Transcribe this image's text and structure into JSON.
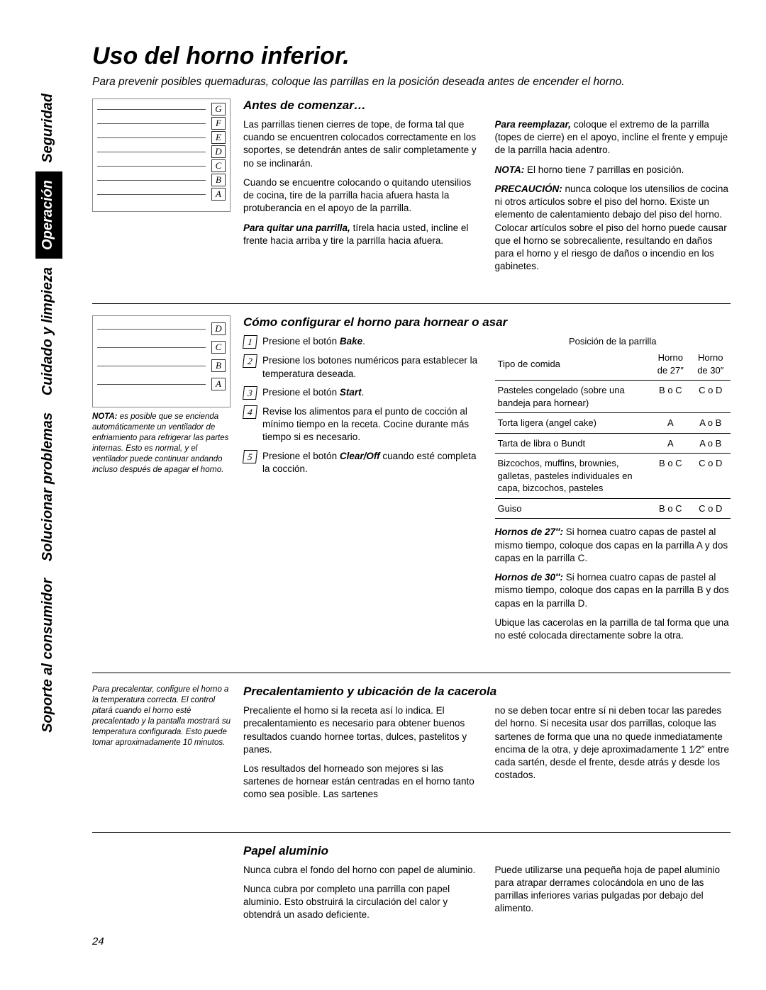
{
  "page_number": "24",
  "tabs": [
    {
      "label": "Seguridad",
      "active": false
    },
    {
      "label": "Operación",
      "active": true
    },
    {
      "label": "Cuidado y limpieza",
      "active": false
    },
    {
      "label": "Solucionar problemas",
      "active": false
    },
    {
      "label": "Soporte al consumidor",
      "active": false
    }
  ],
  "title": "Uso del horno inferior.",
  "subtitle": "Para prevenir posibles quemaduras, coloque las parrillas en la posición deseada antes de encender el horno.",
  "rack_labels_1": [
    "G",
    "F",
    "E",
    "D",
    "C",
    "B",
    "A"
  ],
  "rack_labels_2": [
    "D",
    "C",
    "B",
    "A"
  ],
  "section1": {
    "heading": "Antes de comenzar…",
    "p1": "Las parrillas tienen cierres de tope, de forma tal que cuando se encuentren colocados correctamente en los soportes, se detendrán antes de salir completamente y no se inclinarán.",
    "p2": "Cuando se encuentre colocando o quitando utensilios de cocina, tire de la parrilla hacia afuera hasta la protuberancia en el apoyo de la parrilla.",
    "p3_b": "Para quitar una parrilla,",
    "p3": " tírela hacia usted, incline el frente hacia arriba y tire la parrilla hacia afuera.",
    "p4_b": "Para reemplazar,",
    "p4": " coloque el extremo de la parrilla (topes de cierre) en el apoyo, incline el frente y empuje de la parrilla hacia adentro.",
    "p5_b": "NOTA:",
    "p5": " El horno tiene 7 parrillas en posición.",
    "p6_b": "PRECAUCIÓN:",
    "p6": " nunca coloque los utensilios de cocina ni otros artículos sobre el piso del horno. Existe un elemento de calentamiento debajo del piso del horno. Colocar artículos sobre el piso del horno puede causar que el horno se sobrecaliente, resultando en daños para el horno y el riesgo de daños o incendio en los gabinetes."
  },
  "section2": {
    "heading": "Cómo configurar el horno para hornear o asar",
    "caption_b": "NOTA:",
    "caption": " es posible que se encienda automáticamente un ventilador de enfriamiento para refrigerar las partes internas. Esto es normal, y el ventilador puede continuar andando incluso después de apagar el horno.",
    "steps": [
      {
        "n": "1",
        "pre": "Presione el botón ",
        "b": "Bake",
        "post": "."
      },
      {
        "n": "2",
        "pre": "Presione los botones numéricos para establecer la temperatura deseada.",
        "b": "",
        "post": ""
      },
      {
        "n": "3",
        "pre": "Presione el botón ",
        "b": "Start",
        "post": "."
      },
      {
        "n": "4",
        "pre": "Revise los alimentos para el punto de cocción al mínimo tiempo en la receta. Cocine durante más tiempo si es necesario.",
        "b": "",
        "post": ""
      },
      {
        "n": "5",
        "pre": "Presione el botón ",
        "b": "Clear/Off",
        "post": " cuando esté completa la cocción."
      }
    ],
    "table_over": "Posición de la parrilla",
    "col_food": "Tipo de comida",
    "col_27": "Horno de 27″",
    "col_30": "Horno de 30″",
    "rows": [
      {
        "food": "Pasteles congelado (sobre una bandeja para hornear)",
        "c27": "B o C",
        "c30": "C o D"
      },
      {
        "food": "Torta ligera (angel cake)",
        "c27": "A",
        "c30": "A o B"
      },
      {
        "food": "Tarta de libra o Bundt",
        "c27": "A",
        "c30": "A o B"
      },
      {
        "food": "Bizcochos, muffins, brownies, galletas, pasteles individuales en capa, bizcochos, pasteles",
        "c27": "B o C",
        "c30": "C o D"
      },
      {
        "food": "Guiso",
        "c27": "B o C",
        "c30": "C o D"
      }
    ],
    "note27_b": "Hornos de 27″:",
    "note27": " Si hornea cuatro capas de pastel al mismo tiempo, coloque dos capas en la parrilla A y dos capas en la parrilla C.",
    "note30_b": "Hornos de 30″:",
    "note30": " Si hornea cuatro capas de pastel al mismo tiempo, coloque dos capas en la parrilla B y dos capas en la parrilla D.",
    "note_last": "Ubique las cacerolas en la parrilla de tal forma que una no esté colocada directamente sobre la otra."
  },
  "section3": {
    "caption": "Para precalentar, configure el horno a la temperatura correcta. El control pitará cuando el horno esté precalentado y la pantalla mostrará su temperatura configurada. Esto puede tomar aproximadamente 10 minutos.",
    "heading": "Precalentamiento y ubicación de la cacerola",
    "p1": "Precaliente el horno si la receta así lo indica. El precalentamiento es necesario para obtener buenos resultados cuando hornee tortas, dulces, pastelitos y panes.",
    "p2": "Los resultados del horneado son mejores si las sartenes de hornear están centradas en el horno tanto como sea posible. Las sartenes",
    "p3": "no se deben tocar entre sí ni deben tocar las paredes del horno. Si necesita usar dos parrillas, coloque las sartenes de forma que una no quede inmediatamente encima de la otra, y deje aproximadamente 1 1⁄2″ entre cada sartén, desde el frente, desde atrás y desde los costados."
  },
  "section4": {
    "heading": "Papel aluminio",
    "p1": "Nunca cubra el fondo del horno con papel de aluminio.",
    "p2": "Nunca cubra por completo una parrilla con papel aluminio. Esto obstruirá la circulación del calor y obtendrá un asado deficiente.",
    "p3": "Puede utilizarse una pequeña hoja de papel aluminio para atrapar derrames colocándola en uno de las parrillas inferiores varias pulgadas por debajo del alimento."
  }
}
